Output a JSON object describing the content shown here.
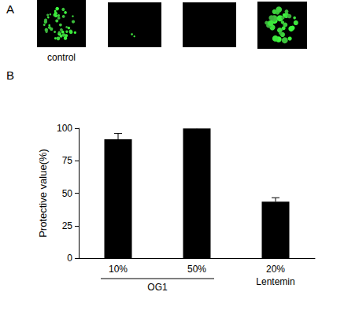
{
  "chart_data": {
    "type": "bar",
    "categories": [
      "10%",
      "50%",
      "20%"
    ],
    "values": [
      91.5,
      99.8,
      43.5
    ],
    "errors": [
      4.5,
      0.5,
      3
    ],
    "color": "#000000",
    "ylim": [
      0,
      100
    ],
    "yticks": [
      0,
      25,
      50,
      75,
      100
    ],
    "y_label": "Protective value(%)",
    "grid": false,
    "annotations": [
      {
        "text": "OG1",
        "categories": [
          "10%",
          "50%"
        ]
      },
      {
        "text": "Lentemin",
        "categories": [
          "20%"
        ]
      }
    ]
  },
  "figure": {
    "panel_labels": [
      "A",
      "B"
    ],
    "image_labels": [
      "control",
      null,
      null,
      null
    ]
  }
}
